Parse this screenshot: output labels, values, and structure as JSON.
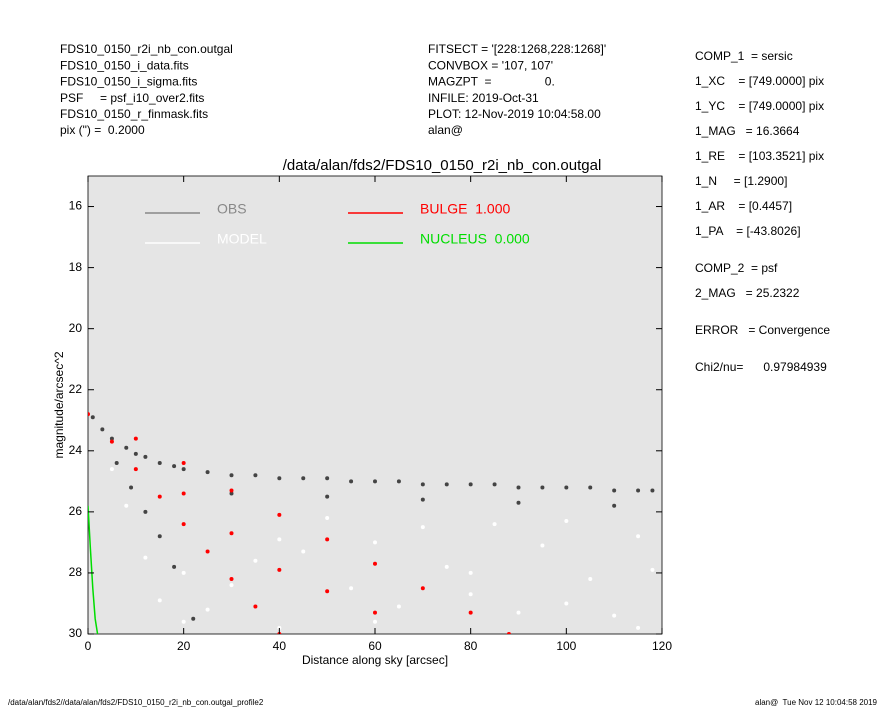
{
  "header_left": [
    "FDS10_0150_r2i_nb_con.outgal",
    "FDS10_0150_i_data.fits",
    "FDS10_0150_i_sigma.fits",
    "PSF     = psf_i10_over2.fits",
    "FDS10_0150_r_finmask.fits",
    "pix (\") =  0.2000"
  ],
  "header_middle": [
    "FITSECT = '[228:1268,228:1268]'",
    "CONVBOX = '107, 107'",
    "MAGZPT  =                0.",
    "INFILE: 2019-Oct-31",
    "PLOT: 12-Nov-2019 10:04:58.00",
    "alan@"
  ],
  "parameters": [
    "COMP_1  = sersic",
    "1_XC    = [749.0000] pix",
    "1_YC    = [749.0000] pix",
    "1_MAG   = 16.3664",
    "1_RE    = [103.3521] pix",
    "1_N     = [1.2900]",
    "1_AR    = [0.4457]",
    "1_PA    = [-43.8026]",
    "COMP_2  = psf",
    "2_MAG   = 25.2322",
    "ERROR   = Convergence",
    "Chi2/nu=      0.97984939"
  ],
  "footer_left": "/data/alan/fds2//data/alan/fds2/FDS10_0150_r2i_nb_con.outgal_profile2",
  "footer_right": "alan@  Tue Nov 12 10:04:58 2019",
  "chart_data": {
    "type": "scatter",
    "title": "/data/alan/fds2/FDS10_0150_r2i_nb_con.outgal",
    "x_label": "Distance along sky [arcsec]",
    "y_label": "magnitude/arcsec^2",
    "xlim": [
      0,
      120
    ],
    "xticks": [
      0,
      20,
      40,
      60,
      80,
      100,
      120
    ],
    "ylim": [
      15,
      30
    ],
    "yticks": [
      16,
      18,
      20,
      22,
      24,
      26,
      28,
      30
    ],
    "y_inverted": true,
    "background": "#e5e5e5",
    "series": [
      {
        "name": "OBS",
        "color": "#444444",
        "legend_color": "#888888",
        "mode": "markers",
        "x": [
          1,
          3,
          5,
          8,
          10,
          12,
          15,
          18,
          20,
          25,
          30,
          35,
          40,
          45,
          50,
          55,
          60,
          65,
          70,
          75,
          80,
          85,
          90,
          95,
          100,
          105,
          110,
          115,
          118,
          6,
          9,
          12,
          15,
          18,
          22,
          30,
          50,
          70,
          90,
          110
        ],
        "values": [
          22.9,
          23.3,
          23.6,
          23.9,
          24.1,
          24.2,
          24.4,
          24.5,
          24.6,
          24.7,
          24.8,
          24.8,
          24.9,
          24.9,
          24.9,
          25.0,
          25.0,
          25.0,
          25.1,
          25.1,
          25.1,
          25.1,
          25.2,
          25.2,
          25.2,
          25.2,
          25.3,
          25.3,
          25.3,
          24.4,
          25.2,
          26.0,
          26.8,
          27.8,
          29.5,
          25.4,
          25.5,
          25.6,
          25.7,
          25.8
        ]
      },
      {
        "name": "MODEL",
        "color": "#ffffff",
        "legend_color": "#ffffff",
        "mode": "markers",
        "x": [
          5,
          8,
          12,
          15,
          20,
          25,
          30,
          35,
          40,
          45,
          50,
          55,
          60,
          65,
          70,
          75,
          80,
          85,
          90,
          95,
          100,
          105,
          110,
          115,
          118,
          20,
          40,
          60,
          80,
          100,
          115
        ],
        "values": [
          24.6,
          25.8,
          27.5,
          28.9,
          29.6,
          29.2,
          28.4,
          27.6,
          26.9,
          27.3,
          26.2,
          28.5,
          27.0,
          29.1,
          26.5,
          27.8,
          28.7,
          26.4,
          29.3,
          27.1,
          26.3,
          28.2,
          29.4,
          26.8,
          27.9,
          28.0,
          29.8,
          29.6,
          28.0,
          29.0,
          29.8
        ]
      },
      {
        "name": "BULGE  1.000",
        "color": "#ff0000",
        "legend_color": "#ff0000",
        "mode": "markers",
        "x": [
          0,
          5,
          10,
          15,
          20,
          25,
          30,
          35,
          40,
          10,
          20,
          30,
          40,
          50,
          60,
          70,
          80,
          88,
          20,
          30,
          40,
          50,
          60
        ],
        "values": [
          22.8,
          23.7,
          24.6,
          25.5,
          26.4,
          27.3,
          28.2,
          29.1,
          30.0,
          23.6,
          24.4,
          25.3,
          26.1,
          26.9,
          27.7,
          28.5,
          29.3,
          30.0,
          25.4,
          26.7,
          27.9,
          28.6,
          29.3
        ]
      },
      {
        "name": "NUCLEUS  0.000",
        "color": "#00dd00",
        "legend_color": "#00dd00",
        "mode": "line",
        "x": [
          0,
          0.5,
          1,
          1.5,
          2
        ],
        "values": [
          25.8,
          27.2,
          28.5,
          29.5,
          30.0
        ]
      }
    ]
  }
}
